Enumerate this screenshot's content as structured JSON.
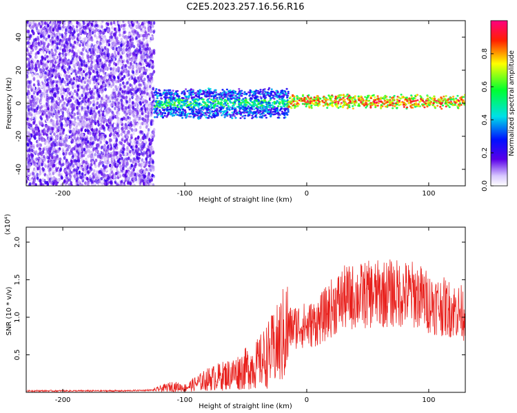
{
  "figure": {
    "title": "C2E5.2023.257.16.56.R16"
  },
  "chart_data": [
    {
      "type": "heatmap",
      "xlabel": "Height of straight line (km)",
      "ylabel": "Frequency (Hz)",
      "xlim": [
        -230,
        130
      ],
      "ylim": [
        -50,
        50
      ],
      "x_ticks": [
        -200,
        -100,
        0,
        100
      ],
      "x_tick_labels": [
        "-200",
        "-100",
        "0",
        "100"
      ],
      "y_ticks": [
        -40,
        -20,
        0,
        20,
        40
      ],
      "y_tick_labels": [
        "-40",
        "-20",
        "0",
        "20",
        "40"
      ],
      "grid": false,
      "colorbar": {
        "label": "Normalized spectral amplitude",
        "range": [
          0,
          1
        ],
        "ticks": [
          0.0,
          0.2,
          0.4,
          0.6,
          0.8
        ],
        "tick_labels": [
          "0.0",
          "0.2",
          "0.4",
          "0.6",
          "0.8"
        ],
        "colormap": [
          "#ffffff",
          "#5a00e8",
          "#0010ff",
          "#00e0e8",
          "#00ff30",
          "#ffff00",
          "#ff2000",
          "#ff0080"
        ]
      },
      "regions": [
        {
          "x": [
            -230,
            -125
          ],
          "freq_band": [
            -50,
            50
          ],
          "amplitude": [
            0.0,
            0.2
          ]
        },
        {
          "x": [
            -125,
            -15
          ],
          "freq_band": [
            -8,
            8
          ],
          "amplitude": [
            0.1,
            0.45
          ]
        },
        {
          "x": [
            -15,
            130
          ],
          "freq_band": [
            -2,
            4
          ],
          "amplitude": [
            0.5,
            0.9
          ]
        }
      ]
    },
    {
      "type": "line",
      "xlabel": "Height of straight line (km)",
      "ylabel": "SNR (10 * v/v)",
      "y_scale_label": "(x10⁴)",
      "xlim": [
        -230,
        130
      ],
      "ylim": [
        0,
        2.2
      ],
      "x_ticks": [
        -200,
        -100,
        0,
        100
      ],
      "x_tick_labels": [
        "-200",
        "-100",
        "0",
        "100"
      ],
      "y_ticks": [
        0.5,
        1.0,
        1.5,
        2.0
      ],
      "y_tick_labels": [
        "0.5",
        "1.0",
        "1.5",
        "2.0"
      ],
      "grid": false,
      "color": "#e8201c",
      "series": [
        {
          "x": [
            -230,
            -200,
            -150,
            -125,
            -110,
            -100,
            -80,
            -60,
            -40,
            -25,
            -15,
            -5,
            0,
            10,
            20,
            30,
            50,
            70,
            90,
            100,
            110,
            120,
            130
          ],
          "values": [
            0.02,
            0.02,
            0.02,
            0.03,
            0.08,
            0.06,
            0.18,
            0.25,
            0.38,
            0.6,
            0.85,
            0.9,
            0.88,
            0.95,
            1.12,
            1.25,
            1.3,
            1.32,
            1.3,
            1.2,
            1.15,
            1.1,
            1.05
          ]
        }
      ]
    }
  ]
}
